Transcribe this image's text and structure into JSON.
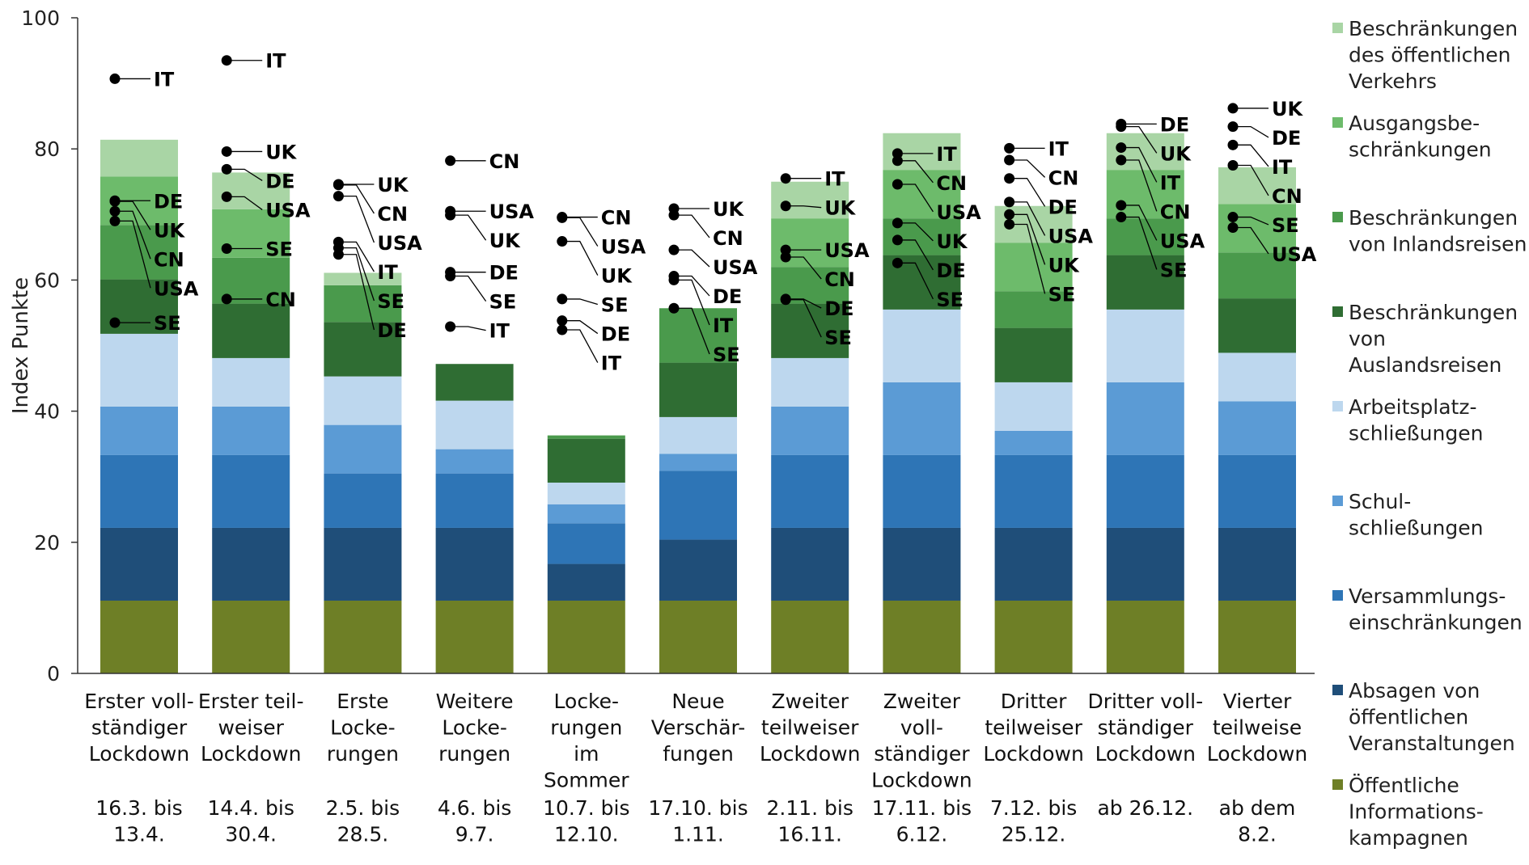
{
  "chart_data": {
    "type": "bar",
    "stacked": true,
    "ylabel": "Index Punkte",
    "ylim": [
      0,
      100
    ],
    "yticks": [
      0,
      20,
      40,
      60,
      80,
      100
    ],
    "grid": false,
    "legend_position": "right",
    "categories": [
      {
        "lines": [
          "Erster voll-",
          "ständiger",
          "Lockdown"
        ],
        "dates": [
          "16.3. bis",
          "13.4."
        ]
      },
      {
        "lines": [
          "Erster teil-",
          "weiser",
          "Lockdown"
        ],
        "dates": [
          "14.4. bis",
          "30.4."
        ]
      },
      {
        "lines": [
          "Erste",
          "Locke-",
          "rungen"
        ],
        "dates": [
          "2.5. bis",
          "28.5."
        ]
      },
      {
        "lines": [
          "Weitere",
          "Locke-",
          "rungen"
        ],
        "dates": [
          "4.6. bis",
          "9.7."
        ]
      },
      {
        "lines": [
          "Locke-",
          "rungen",
          "im",
          "Sommer"
        ],
        "dates": [
          "10.7. bis",
          "12.10."
        ]
      },
      {
        "lines": [
          "Neue",
          "Verschär-",
          "fungen"
        ],
        "dates": [
          "17.10. bis",
          "1.11."
        ]
      },
      {
        "lines": [
          "Zweiter",
          "teilweiser",
          "Lockdown"
        ],
        "dates": [
          "2.11. bis",
          "16.11."
        ]
      },
      {
        "lines": [
          "Zweiter",
          "voll-",
          "ständiger",
          "Lockdown"
        ],
        "dates": [
          "17.11. bis",
          "6.12."
        ]
      },
      {
        "lines": [
          "Dritter",
          "teilweiser",
          "Lockdown"
        ],
        "dates": [
          "7.12. bis",
          "25.12."
        ]
      },
      {
        "lines": [
          "Dritter voll-",
          "ständiger",
          "Lockdown"
        ],
        "dates": [
          "ab 26.12."
        ]
      },
      {
        "lines": [
          "Vierter",
          "teilweise",
          "Lockdown"
        ],
        "dates": [
          "ab dem",
          "8.2."
        ]
      }
    ],
    "series": [
      {
        "name": "Öffentliche Informations-kampagnen",
        "legend_lines": [
          "Öffentliche",
          "Informations-",
          "kampagnen"
        ],
        "color": "#6e7f26",
        "values": [
          11.1,
          11.1,
          11.1,
          11.1,
          11.1,
          11.1,
          11.1,
          11.1,
          11.1,
          11.1,
          11.1
        ]
      },
      {
        "name": "Absagen von öffentlichen Veranstaltungen",
        "legend_lines": [
          "Absagen von",
          "öffentlichen",
          "Veranstaltungen"
        ],
        "color": "#1f4e79",
        "values": [
          11.1,
          11.1,
          11.1,
          11.1,
          5.6,
          9.3,
          11.1,
          11.1,
          11.1,
          11.1,
          11.1
        ]
      },
      {
        "name": "Versammlungs-einschränkungen",
        "legend_lines": [
          "Versammlungs-",
          "einschränkungen"
        ],
        "color": "#2e75b6",
        "values": [
          11.1,
          11.1,
          8.3,
          8.3,
          6.2,
          10.5,
          11.1,
          11.1,
          11.1,
          11.1,
          11.1
        ]
      },
      {
        "name": "Schul-schließungen",
        "legend_lines": [
          "Schul-",
          "schließungen"
        ],
        "color": "#5b9bd5",
        "values": [
          7.4,
          7.4,
          7.4,
          3.7,
          2.9,
          2.6,
          7.4,
          11.1,
          3.7,
          11.1,
          8.2
        ]
      },
      {
        "name": "Arbeitsplatz-schließungen",
        "legend_lines": [
          "Arbeitsplatz-",
          "schließungen"
        ],
        "color": "#bdd7ee",
        "values": [
          11.1,
          7.4,
          7.4,
          7.4,
          3.3,
          5.6,
          7.4,
          11.1,
          7.4,
          11.1,
          7.4
        ]
      },
      {
        "name": "Beschränkungen von Auslandsreisen",
        "legend_lines": [
          "Beschränkungen",
          "von",
          "Auslandsreisen"
        ],
        "color": "#2f6d33",
        "values": [
          8.3,
          8.3,
          8.3,
          5.6,
          6.7,
          8.3,
          8.3,
          8.3,
          8.3,
          8.3,
          8.3
        ]
      },
      {
        "name": "Beschränkungen von Inlandsreisen",
        "legend_lines": [
          "Beschränkungen",
          "von Inlandsreisen"
        ],
        "color": "#4a9a4c",
        "values": [
          8.3,
          7.0,
          5.6,
          0,
          0.5,
          8.3,
          5.6,
          5.6,
          5.6,
          5.6,
          7.0
        ]
      },
      {
        "name": "Ausgangsbe-schränkungen",
        "legend_lines": [
          "Ausgangsbe-",
          "schränkungen"
        ],
        "color": "#6dbb6b",
        "values": [
          7.4,
          7.4,
          0,
          0,
          0,
          0,
          7.4,
          7.4,
          7.4,
          7.4,
          7.4
        ]
      },
      {
        "name": "Beschränkungen des öffentlichen Verkehrs",
        "legend_lines": [
          "Beschränkungen",
          "des öffentlichen",
          "Verkehrs"
        ],
        "color": "#a9d5a5",
        "values": [
          5.6,
          5.6,
          1.9,
          0,
          0,
          0,
          5.6,
          5.6,
          5.6,
          5.6,
          5.6
        ]
      }
    ],
    "country_markers": [
      [
        {
          "label": "IT",
          "value": 90.7
        },
        {
          "label": "DE",
          "value": 72.1
        },
        {
          "label": "CN",
          "value": 70.5
        },
        {
          "label": "USA",
          "value": 69.0
        },
        {
          "label": "UK",
          "value": 72.0
        },
        {
          "label": "SE",
          "value": 53.5
        }
      ],
      [
        {
          "label": "IT",
          "value": 93.5
        },
        {
          "label": "UK",
          "value": 79.6
        },
        {
          "label": "DE",
          "value": 76.9
        },
        {
          "label": "USA",
          "value": 72.7
        },
        {
          "label": "SE",
          "value": 64.8
        },
        {
          "label": "CN",
          "value": 57.1
        }
      ],
      [
        {
          "label": "UK",
          "value": 74.6
        },
        {
          "label": "CN",
          "value": 74.5
        },
        {
          "label": "USA",
          "value": 72.8
        },
        {
          "label": "IT",
          "value": 65.8
        },
        {
          "label": "SE",
          "value": 64.9
        },
        {
          "label": "DE",
          "value": 63.9
        }
      ],
      [
        {
          "label": "CN",
          "value": 78.2
        },
        {
          "label": "USA",
          "value": 70.5
        },
        {
          "label": "UK",
          "value": 69.9
        },
        {
          "label": "DE",
          "value": 61.2
        },
        {
          "label": "SE",
          "value": 60.6
        },
        {
          "label": "IT",
          "value": 52.9
        }
      ],
      [
        {
          "label": "CN",
          "value": 69.6
        },
        {
          "label": "USA",
          "value": 69.5
        },
        {
          "label": "UK",
          "value": 65.9
        },
        {
          "label": "SE",
          "value": 57.1
        },
        {
          "label": "DE",
          "value": 53.8
        },
        {
          "label": "IT",
          "value": 52.4
        }
      ],
      [
        {
          "label": "UK",
          "value": 70.9
        },
        {
          "label": "CN",
          "value": 69.9
        },
        {
          "label": "USA",
          "value": 64.6
        },
        {
          "label": "DE",
          "value": 60.6
        },
        {
          "label": "IT",
          "value": 60.0
        },
        {
          "label": "SE",
          "value": 55.7
        }
      ],
      [
        {
          "label": "IT",
          "value": 75.5
        },
        {
          "label": "UK",
          "value": 71.3
        },
        {
          "label": "USA",
          "value": 64.6
        },
        {
          "label": "CN",
          "value": 63.5
        },
        {
          "label": "DE",
          "value": 57.1
        },
        {
          "label": "SE",
          "value": 57.0
        }
      ],
      [
        {
          "label": "IT",
          "value": 79.3
        },
        {
          "label": "CN",
          "value": 78.2
        },
        {
          "label": "USA",
          "value": 74.6
        },
        {
          "label": "UK",
          "value": 68.7
        },
        {
          "label": "DE",
          "value": 66.1
        },
        {
          "label": "SE",
          "value": 62.6
        }
      ],
      [
        {
          "label": "IT",
          "value": 80.1
        },
        {
          "label": "CN",
          "value": 78.3
        },
        {
          "label": "DE",
          "value": 75.5
        },
        {
          "label": "USA",
          "value": 71.9
        },
        {
          "label": "UK",
          "value": 70.0
        },
        {
          "label": "SE",
          "value": 68.5
        }
      ],
      [
        {
          "label": "DE",
          "value": 83.8
        },
        {
          "label": "UK",
          "value": 83.4
        },
        {
          "label": "IT",
          "value": 80.2
        },
        {
          "label": "CN",
          "value": 78.3
        },
        {
          "label": "USA",
          "value": 71.4
        },
        {
          "label": "SE",
          "value": 69.6
        }
      ],
      [
        {
          "label": "UK",
          "value": 86.2
        },
        {
          "label": "DE",
          "value": 83.4
        },
        {
          "label": "IT",
          "value": 80.6
        },
        {
          "label": "CN",
          "value": 77.5
        },
        {
          "label": "SE",
          "value": 69.6
        },
        {
          "label": "USA",
          "value": 68.0
        }
      ]
    ]
  }
}
